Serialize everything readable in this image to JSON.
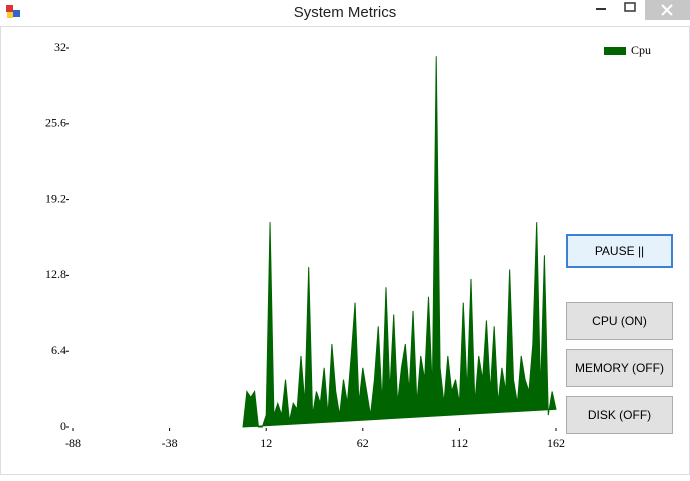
{
  "window": {
    "title": "System Metrics"
  },
  "chart_data": {
    "type": "area",
    "x": [
      0,
      2,
      4,
      6,
      8,
      10,
      12,
      14,
      16,
      18,
      20,
      22,
      24,
      26,
      28,
      30,
      32,
      34,
      36,
      38,
      40,
      42,
      44,
      46,
      48,
      50,
      52,
      54,
      56,
      58,
      60,
      62,
      64,
      66,
      68,
      70,
      72,
      74,
      76,
      78,
      80,
      82,
      84,
      86,
      88,
      90,
      92,
      94,
      96,
      98,
      100,
      102,
      104,
      106,
      108,
      110,
      112,
      114,
      116,
      118,
      120,
      122,
      124,
      126,
      128,
      130,
      132,
      134,
      136,
      138,
      140,
      142,
      144,
      146,
      148,
      150,
      152,
      154,
      156,
      158,
      160,
      162
    ],
    "series": [
      {
        "name": "Cpu",
        "color": "#006400",
        "values": [
          0,
          3,
          2.5,
          3,
          0,
          0,
          1,
          17.3,
          1,
          2,
          1,
          4,
          0.5,
          2,
          1.5,
          6,
          2,
          13.5,
          1,
          3,
          2,
          5,
          1,
          7,
          3,
          1,
          4,
          2,
          6,
          10.5,
          2,
          5,
          3,
          1,
          4,
          8.5,
          2,
          11.8,
          3,
          9.5,
          2,
          5,
          7,
          3,
          9.8,
          2,
          6,
          4,
          11,
          3,
          31.3,
          5,
          2,
          6,
          3,
          4,
          2,
          10.5,
          3,
          12.5,
          2,
          6,
          4,
          9,
          3,
          8.5,
          2,
          5,
          3,
          13.3,
          4,
          2,
          6,
          4,
          3,
          7,
          17.3,
          3,
          14.5,
          1,
          3,
          1.5
        ]
      }
    ],
    "xlim": [
      -88,
      162
    ],
    "xticks": [
      -88,
      -38,
      12,
      62,
      112,
      162
    ],
    "ylim": [
      0,
      32
    ],
    "yticks": [
      0,
      6.4,
      12.8,
      19.2,
      25.6,
      32
    ],
    "legend": "top-right"
  },
  "buttons": [
    "PAUSE ||",
    "CPU (ON)",
    "MEMORY (OFF)",
    "DISK (OFF)"
  ]
}
